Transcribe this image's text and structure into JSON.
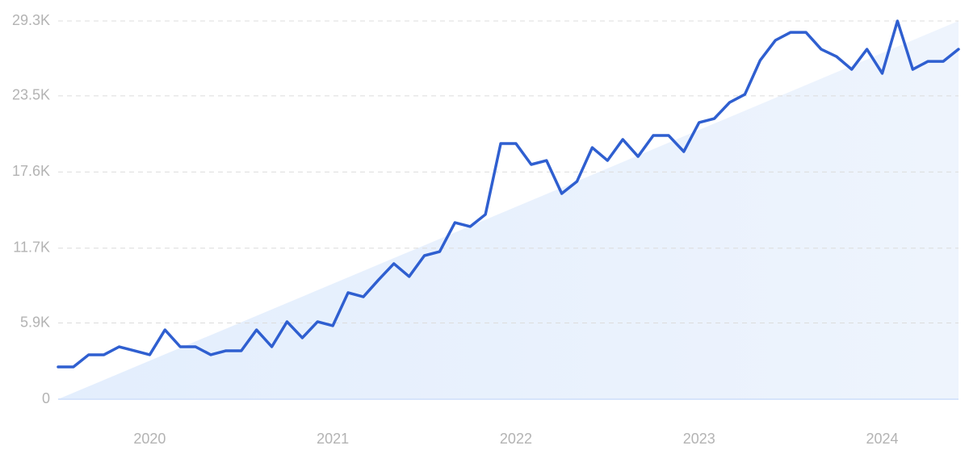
{
  "chart_data": {
    "type": "line",
    "categories": [
      null,
      null,
      null,
      null,
      null,
      null,
      "2020",
      null,
      null,
      null,
      null,
      null,
      null,
      null,
      null,
      null,
      null,
      null,
      "2021",
      null,
      null,
      null,
      null,
      null,
      null,
      null,
      null,
      null,
      null,
      null,
      "2022",
      null,
      null,
      null,
      null,
      null,
      null,
      null,
      null,
      null,
      null,
      null,
      "2023",
      null,
      null,
      null,
      null,
      null,
      null,
      null,
      null,
      null,
      null,
      null,
      "2024",
      null,
      null,
      null,
      null,
      null
    ],
    "values": [
      2500,
      2500,
      3440,
      3440,
      4060,
      3750,
      3440,
      5370,
      4060,
      4060,
      3440,
      3750,
      3750,
      5370,
      4060,
      6000,
      4750,
      6000,
      5690,
      8250,
      7930,
      9250,
      10500,
      9500,
      11120,
      11430,
      13680,
      13370,
      14310,
      19800,
      19800,
      18180,
      18490,
      15930,
      16870,
      19490,
      18490,
      20120,
      18800,
      20430,
      20430,
      19180,
      21430,
      21740,
      22990,
      23610,
      26240,
      27800,
      28420,
      28420,
      27110,
      26550,
      25550,
      27110,
      25240,
      29300,
      25550,
      26170,
      26170,
      27110
    ],
    "color": "#2f5fd0",
    "ylim": [
      0,
      29300
    ],
    "yticks": [
      0,
      {
        "value": 5900,
        "label": "5.9K"
      },
      {
        "value": 11700,
        "label": "11.7K"
      },
      {
        "value": 17600,
        "label": "17.6K"
      },
      {
        "value": 23500,
        "label": "23.5K"
      },
      {
        "value": 29300,
        "label": "29.3K"
      }
    ],
    "grid": true
  }
}
